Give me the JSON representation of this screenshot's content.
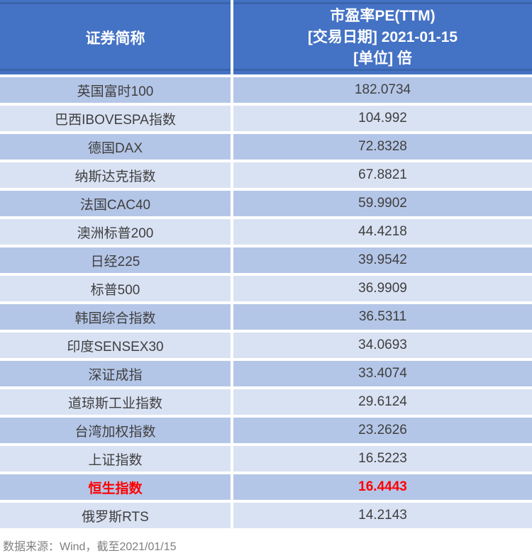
{
  "chart_data": {
    "type": "table",
    "title": "市盈率PE(TTM) [交易日期] 2021-01-15 [单位] 倍",
    "header": {
      "col1": "证券简称",
      "col2_line1": "市盈率PE(TTM)",
      "col2_line2": "[交易日期] 2021-01-15",
      "col2_line3": "[单位] 倍"
    },
    "columns": [
      "证券简称",
      "市盈率PE(TTM)"
    ],
    "rows": [
      {
        "name": "英国富时100",
        "value": "182.0734"
      },
      {
        "name": "巴西IBOVESPA指数",
        "value": "104.992"
      },
      {
        "name": "德国DAX",
        "value": "72.8328"
      },
      {
        "name": "纳斯达克指数",
        "value": "67.8821"
      },
      {
        "name": "法国CAC40",
        "value": "59.9902"
      },
      {
        "name": "澳洲标普200",
        "value": "44.4218"
      },
      {
        "name": "日经225",
        "value": "39.9542"
      },
      {
        "name": "标普500",
        "value": "36.9909"
      },
      {
        "name": "韩国综合指数",
        "value": "36.5311"
      },
      {
        "name": "印度SENSEX30",
        "value": "34.0693"
      },
      {
        "name": "深证成指",
        "value": "33.4074"
      },
      {
        "name": "道琼斯工业指数",
        "value": "29.6124"
      },
      {
        "name": "台湾加权指数",
        "value": "23.2626"
      },
      {
        "name": "上证指数",
        "value": "16.5223"
      },
      {
        "name": "恒生指数",
        "value": "16.4443"
      },
      {
        "name": "俄罗斯RTS",
        "value": "14.2143"
      }
    ],
    "highlight_row_index": 14,
    "highlight_row_name": "恒生指数",
    "source_note": "数据来源：Wind，截至2021/01/15"
  },
  "colors": {
    "header_bg": "#4472c4",
    "header_border_line": "#3a64ab",
    "header_text": "#ffffff",
    "row_odd_bg": "#b4c6e7",
    "row_even_bg": "#d9e2f3",
    "body_text": "#3f3f3f",
    "highlight_text": "#ff0000",
    "source_text": "#808080",
    "gap": "#ffffff"
  }
}
